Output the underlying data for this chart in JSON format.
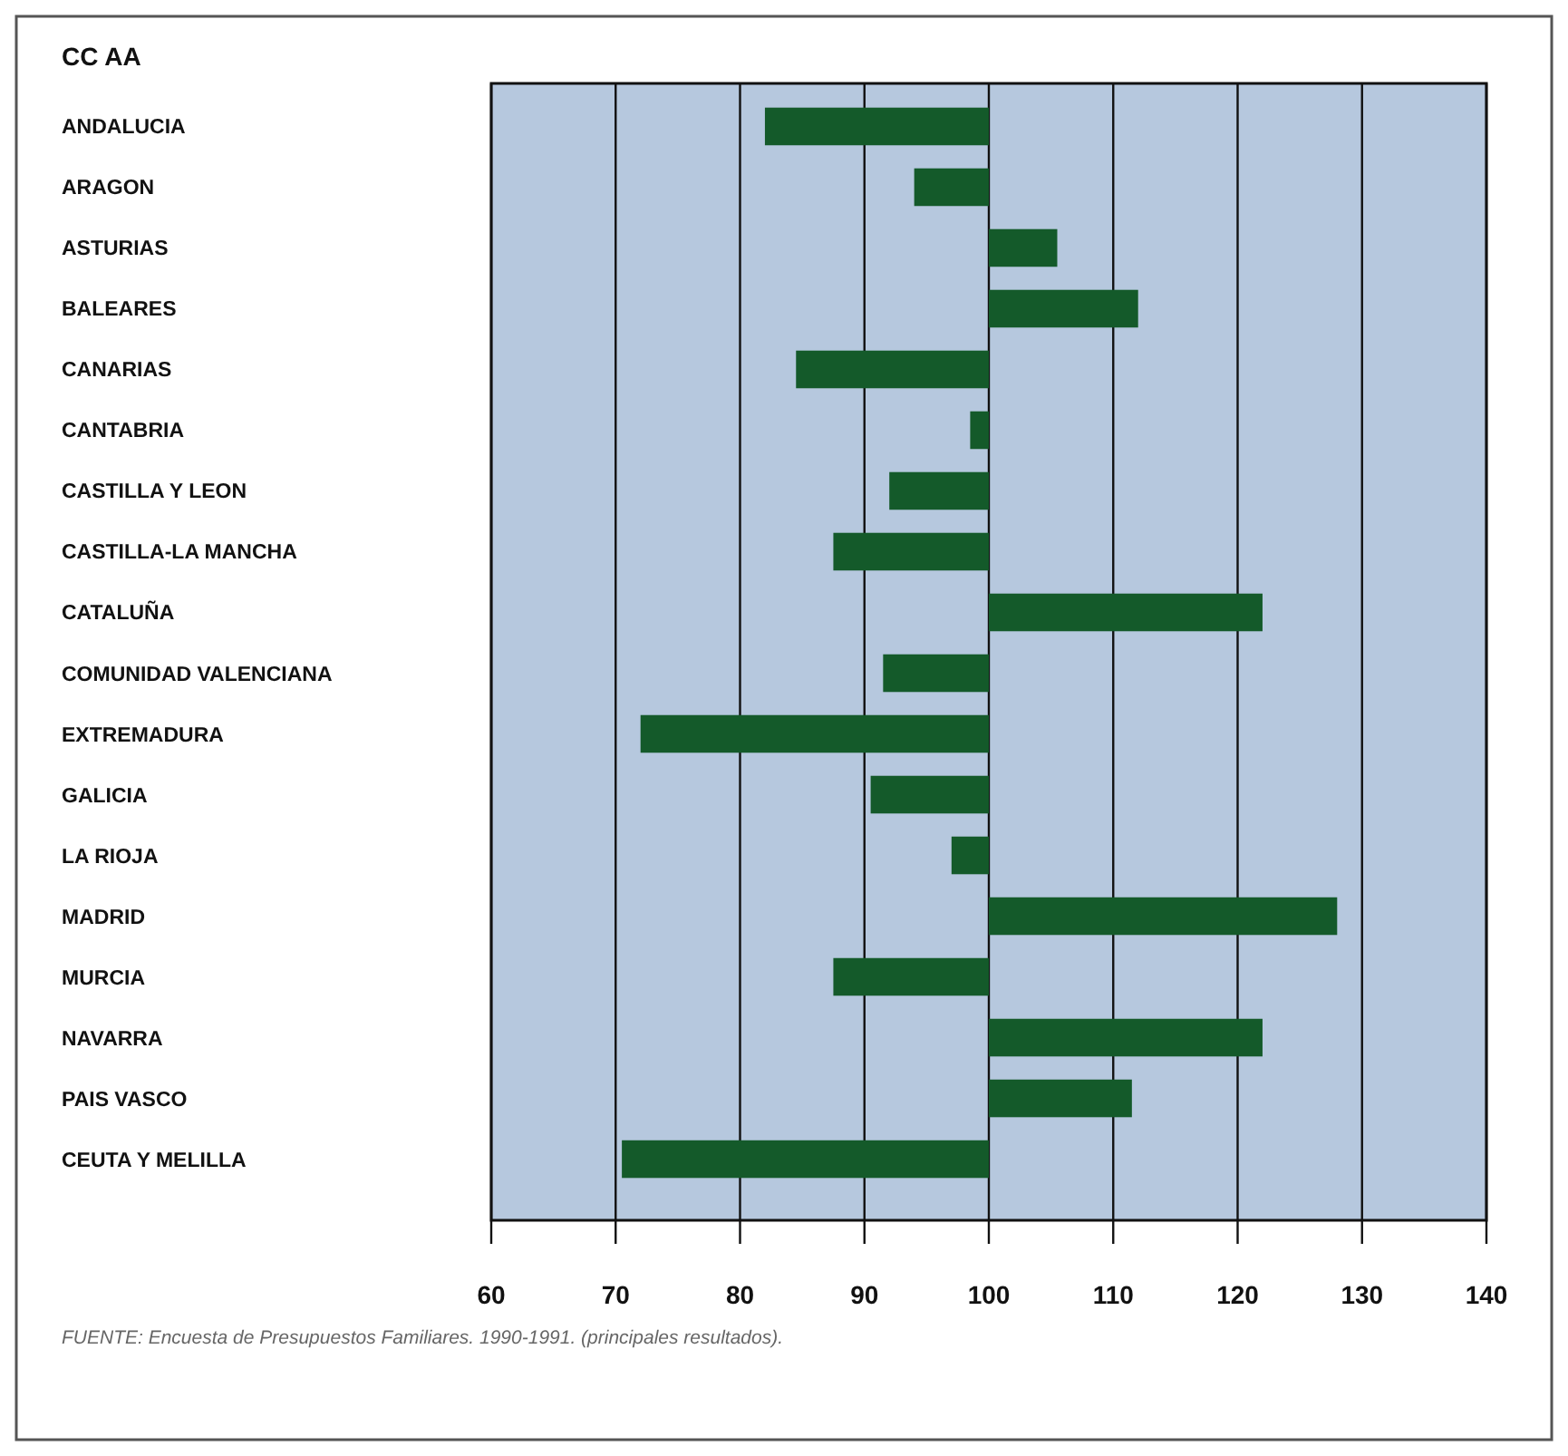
{
  "chart_data": {
    "type": "bar",
    "orientation": "horizontal",
    "title": "CC AA",
    "categories": [
      "ANDALUCIA",
      "ARAGON",
      "ASTURIAS",
      "BALEARES",
      "CANARIAS",
      "CANTABRIA",
      "CASTILLA Y LEON",
      "CASTILLA-LA MANCHA",
      "CATALUÑA",
      "COMUNIDAD VALENCIANA",
      "EXTREMADURA",
      "GALICIA",
      "LA RIOJA",
      "MADRID",
      "MURCIA",
      "NAVARRA",
      "PAIS VASCO",
      "CEUTA Y MELILLA"
    ],
    "base": [
      100,
      100,
      100,
      100,
      100,
      100,
      100,
      100,
      100,
      100,
      100,
      100,
      100,
      100,
      100,
      100,
      100,
      100
    ],
    "values": [
      -18,
      -6,
      5.5,
      12,
      -15.5,
      -1.5,
      -8,
      -12.5,
      22,
      -8.5,
      -28,
      -9.5,
      -3,
      28,
      -12.5,
      22,
      11.5,
      -29.5
    ],
    "color": "#145a2a",
    "xlim": [
      60,
      140
    ],
    "xticks": [
      60,
      70,
      80,
      90,
      100,
      110,
      120,
      130,
      140
    ],
    "grid": "x",
    "annotations": [
      "FUENTE: Encuesta de Presupuestos Familiares. 1990-1991. (principales resultados)."
    ]
  }
}
